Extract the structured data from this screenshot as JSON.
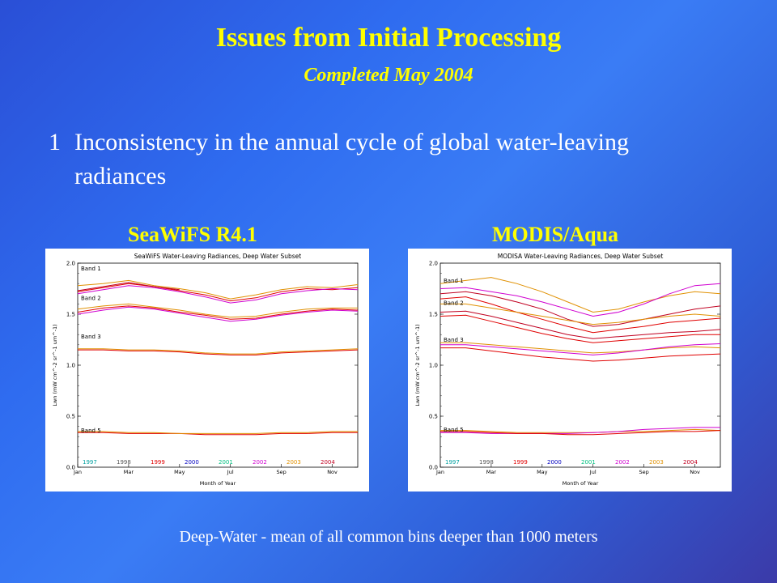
{
  "slide": {
    "title": "Issues from Initial Processing",
    "subtitle": "Completed May 2004",
    "bullet_number": "1",
    "bullet_text": "Inconsistency in the annual cycle of global water-leaving radiances",
    "left_label": "SeaWiFS R4.1",
    "right_label": "MODIS/Aqua",
    "footnote": "Deep-Water - mean of all common bins deeper than 1000 meters"
  },
  "colors": {
    "title": "#ffff00",
    "text": "#ffffff",
    "years": {
      "1997": "#00a0a0",
      "1998": "#555555",
      "1999": "#e00000",
      "2000": "#0000c0",
      "2001": "#00c080",
      "2002": "#d000d0",
      "2003": "#e09000",
      "2004": "#c00020"
    }
  },
  "chart_data": [
    {
      "type": "line",
      "title": "SeaWiFS Water-Leaving Radiances, Deep Water Subset",
      "xlabel": "Month of Year",
      "ylabel": "Lwn (mW cm^-2 sr^-1 um^-1)",
      "x_ticks": [
        "Jan",
        "Mar",
        "May",
        "Jul",
        "Sep",
        "Nov"
      ],
      "y_ticks": [
        "0.0",
        "0.5",
        "1.0",
        "1.5",
        "2.0"
      ],
      "ylim": [
        0,
        2.0
      ],
      "xlim": [
        1,
        12
      ],
      "band_labels": [
        {
          "text": "Band 1",
          "y": 1.95
        },
        {
          "text": "Band 2",
          "y": 1.66
        },
        {
          "text": "Band 3",
          "y": 1.28
        },
        {
          "text": "Band 5",
          "y": 0.36
        }
      ],
      "legend_years": [
        "1997",
        "1998",
        "1999",
        "2000",
        "2001",
        "2002",
        "2003",
        "2004"
      ],
      "series": [
        {
          "year": "1999",
          "band": "1",
          "x": [
            1,
            2,
            3,
            4,
            5,
            6,
            7,
            8,
            9,
            10,
            11,
            12
          ],
          "values": [
            1.72,
            1.76,
            1.8,
            1.77,
            1.73,
            1.69,
            1.63,
            1.66,
            1.72,
            1.75,
            1.74,
            1.76
          ]
        },
        {
          "year": "2003",
          "band": "1",
          "x": [
            1,
            2,
            3,
            4,
            5,
            6,
            7,
            8,
            9,
            10,
            11,
            12
          ],
          "values": [
            1.78,
            1.8,
            1.83,
            1.78,
            1.75,
            1.71,
            1.65,
            1.69,
            1.74,
            1.77,
            1.76,
            1.79
          ]
        },
        {
          "year": "2002",
          "band": "1",
          "x": [
            1,
            2,
            3,
            4,
            5,
            6,
            7,
            8,
            9,
            10,
            11,
            12
          ],
          "values": [
            1.7,
            1.74,
            1.78,
            1.76,
            1.72,
            1.67,
            1.61,
            1.64,
            1.7,
            1.73,
            1.75,
            1.74
          ]
        },
        {
          "year": "2004",
          "band": "1",
          "x": [
            1,
            2,
            3,
            4,
            5
          ],
          "values": [
            1.73,
            1.77,
            1.81,
            1.77,
            1.74
          ]
        },
        {
          "year": "1999",
          "band": "2",
          "x": [
            1,
            2,
            3,
            4,
            5,
            6,
            7,
            8,
            9,
            10,
            11,
            12
          ],
          "values": [
            1.52,
            1.56,
            1.58,
            1.56,
            1.52,
            1.49,
            1.45,
            1.46,
            1.5,
            1.53,
            1.55,
            1.54
          ]
        },
        {
          "year": "2003",
          "band": "2",
          "x": [
            1,
            2,
            3,
            4,
            5,
            6,
            7,
            8,
            9,
            10,
            11,
            12
          ],
          "values": [
            1.55,
            1.58,
            1.6,
            1.57,
            1.54,
            1.5,
            1.47,
            1.48,
            1.52,
            1.55,
            1.56,
            1.56
          ]
        },
        {
          "year": "2002",
          "band": "2",
          "x": [
            1,
            2,
            3,
            4,
            5,
            6,
            7,
            8,
            9,
            10,
            11,
            12
          ],
          "values": [
            1.5,
            1.54,
            1.57,
            1.55,
            1.51,
            1.47,
            1.43,
            1.45,
            1.49,
            1.52,
            1.54,
            1.53
          ]
        },
        {
          "year": "1999",
          "band": "3",
          "x": [
            1,
            2,
            3,
            4,
            5,
            6,
            7,
            8,
            9,
            10,
            11,
            12
          ],
          "values": [
            1.15,
            1.15,
            1.14,
            1.14,
            1.13,
            1.11,
            1.1,
            1.1,
            1.12,
            1.13,
            1.14,
            1.15
          ]
        },
        {
          "year": "2003",
          "band": "3",
          "x": [
            1,
            2,
            3,
            4,
            5,
            6,
            7,
            8,
            9,
            10,
            11,
            12
          ],
          "values": [
            1.16,
            1.16,
            1.15,
            1.15,
            1.14,
            1.12,
            1.11,
            1.11,
            1.13,
            1.14,
            1.15,
            1.16
          ]
        },
        {
          "year": "1999",
          "band": "5",
          "x": [
            1,
            2,
            3,
            4,
            5,
            6,
            7,
            8,
            9,
            10,
            11,
            12
          ],
          "values": [
            0.34,
            0.34,
            0.33,
            0.33,
            0.33,
            0.32,
            0.32,
            0.32,
            0.33,
            0.33,
            0.34,
            0.34
          ]
        },
        {
          "year": "2003",
          "band": "5",
          "x": [
            1,
            2,
            3,
            4,
            5,
            6,
            7,
            8,
            9,
            10,
            11,
            12
          ],
          "values": [
            0.35,
            0.35,
            0.34,
            0.34,
            0.33,
            0.33,
            0.33,
            0.33,
            0.34,
            0.34,
            0.35,
            0.35
          ]
        }
      ]
    },
    {
      "type": "line",
      "title": "MODISA Water-Leaving Radiances, Deep Water Subset",
      "xlabel": "Month of Year",
      "ylabel": "Lwn (mW cm^-2 sr^-1 um^-1)",
      "x_ticks": [
        "Jan",
        "Mar",
        "May",
        "Jul",
        "Sep",
        "Nov"
      ],
      "y_ticks": [
        "0.0",
        "0.5",
        "1.0",
        "1.5",
        "2.0"
      ],
      "ylim": [
        0,
        2.0
      ],
      "xlim": [
        1,
        12
      ],
      "band_labels": [
        {
          "text": "Band 1",
          "y": 1.83
        },
        {
          "text": "Band 2",
          "y": 1.61
        },
        {
          "text": "Band 3",
          "y": 1.25
        },
        {
          "text": "Band 5",
          "y": 0.37
        }
      ],
      "legend_years": [
        "1997",
        "1998",
        "1999",
        "2000",
        "2001",
        "2002",
        "2003",
        "2004"
      ],
      "series": [
        {
          "year": "2003",
          "band": "1",
          "x": [
            1,
            2,
            3,
            4,
            5,
            6,
            7,
            8,
            9,
            10,
            11,
            12
          ],
          "values": [
            1.8,
            1.83,
            1.86,
            1.8,
            1.72,
            1.62,
            1.52,
            1.55,
            1.62,
            1.68,
            1.72,
            1.7
          ]
        },
        {
          "year": "2002",
          "band": "1",
          "x": [
            1,
            2,
            3,
            4,
            5,
            6,
            7,
            8,
            9,
            10,
            11,
            12
          ],
          "values": [
            1.75,
            1.76,
            1.72,
            1.68,
            1.62,
            1.55,
            1.48,
            1.52,
            1.6,
            1.7,
            1.78,
            1.8
          ]
        },
        {
          "year": "2004",
          "band": "1",
          "x": [
            1,
            2,
            3,
            4,
            5,
            6,
            7,
            8,
            9,
            10,
            11,
            12
          ],
          "values": [
            1.7,
            1.72,
            1.68,
            1.62,
            1.55,
            1.45,
            1.38,
            1.4,
            1.45,
            1.5,
            1.55,
            1.58
          ]
        },
        {
          "year": "1999",
          "band": "1",
          "x": [
            1,
            2,
            3,
            4,
            5,
            6,
            7,
            8,
            9,
            10,
            11,
            12
          ],
          "values": [
            1.65,
            1.67,
            1.6,
            1.52,
            1.45,
            1.38,
            1.32,
            1.35,
            1.38,
            1.42,
            1.44,
            1.46
          ]
        },
        {
          "year": "2003",
          "band": "2",
          "x": [
            1,
            2,
            3,
            4,
            5,
            6,
            7,
            8,
            9,
            10,
            11,
            12
          ],
          "values": [
            1.6,
            1.6,
            1.56,
            1.52,
            1.48,
            1.44,
            1.4,
            1.42,
            1.45,
            1.48,
            1.5,
            1.48
          ]
        },
        {
          "year": "2004",
          "band": "2",
          "x": [
            1,
            2,
            3,
            4,
            5,
            6,
            7,
            8,
            9,
            10,
            11,
            12
          ],
          "values": [
            1.52,
            1.53,
            1.48,
            1.42,
            1.36,
            1.3,
            1.26,
            1.28,
            1.3,
            1.32,
            1.33,
            1.35
          ]
        },
        {
          "year": "1999",
          "band": "2",
          "x": [
            1,
            2,
            3,
            4,
            5,
            6,
            7,
            8,
            9,
            10,
            11,
            12
          ],
          "values": [
            1.48,
            1.49,
            1.43,
            1.37,
            1.31,
            1.26,
            1.22,
            1.24,
            1.26,
            1.28,
            1.3,
            1.3
          ]
        },
        {
          "year": "2003",
          "band": "3",
          "x": [
            1,
            2,
            3,
            4,
            5,
            6,
            7,
            8,
            9,
            10,
            11,
            12
          ],
          "values": [
            1.22,
            1.22,
            1.2,
            1.18,
            1.16,
            1.14,
            1.12,
            1.13,
            1.15,
            1.17,
            1.18,
            1.17
          ]
        },
        {
          "year": "2002",
          "band": "3",
          "x": [
            1,
            2,
            3,
            4,
            5,
            6,
            7,
            8,
            9,
            10,
            11,
            12
          ],
          "values": [
            1.2,
            1.2,
            1.18,
            1.16,
            1.14,
            1.12,
            1.1,
            1.12,
            1.15,
            1.18,
            1.2,
            1.21
          ]
        },
        {
          "year": "1999",
          "band": "3",
          "x": [
            1,
            2,
            3,
            4,
            5,
            6,
            7,
            8,
            9,
            10,
            11,
            12
          ],
          "values": [
            1.17,
            1.17,
            1.14,
            1.11,
            1.08,
            1.06,
            1.04,
            1.05,
            1.07,
            1.09,
            1.1,
            1.11
          ]
        },
        {
          "year": "2003",
          "band": "5",
          "x": [
            1,
            2,
            3,
            4,
            5,
            6,
            7,
            8,
            9,
            10,
            11,
            12
          ],
          "values": [
            0.36,
            0.36,
            0.35,
            0.34,
            0.34,
            0.34,
            0.34,
            0.35,
            0.35,
            0.36,
            0.37,
            0.36
          ]
        },
        {
          "year": "2002",
          "band": "5",
          "x": [
            1,
            2,
            3,
            4,
            5,
            6,
            7,
            8,
            9,
            10,
            11,
            12
          ],
          "values": [
            0.34,
            0.34,
            0.33,
            0.33,
            0.33,
            0.33,
            0.34,
            0.35,
            0.37,
            0.38,
            0.39,
            0.39
          ]
        },
        {
          "year": "1999",
          "band": "5",
          "x": [
            1,
            2,
            3,
            4,
            5,
            6,
            7,
            8,
            9,
            10,
            11,
            12
          ],
          "values": [
            0.35,
            0.35,
            0.34,
            0.33,
            0.33,
            0.32,
            0.32,
            0.33,
            0.34,
            0.35,
            0.35,
            0.36
          ]
        }
      ]
    }
  ]
}
